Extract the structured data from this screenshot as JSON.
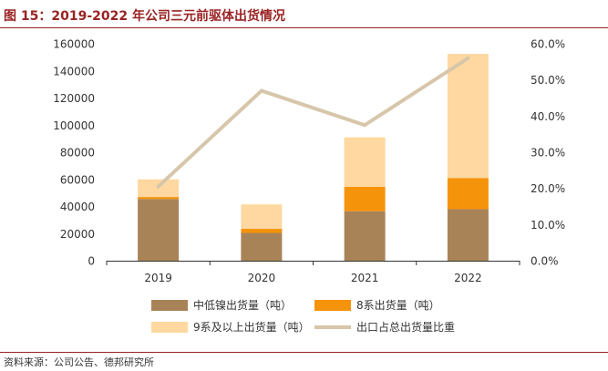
{
  "figure": {
    "title": "图 15：2019-2022 年公司三元前驱体出货情况",
    "source": "资料来源：公司公告、德邦研究所"
  },
  "chart_data": {
    "type": "bar",
    "stacked": true,
    "categories": [
      "2019",
      "2020",
      "2021",
      "2022"
    ],
    "series": [
      {
        "name": "中低镍出货量（吨）",
        "kind": "bar",
        "axis": "left",
        "color": "#a98358",
        "values": [
          45500,
          20500,
          36500,
          38000
        ]
      },
      {
        "name": "8系出货量（吨）",
        "kind": "bar",
        "axis": "left",
        "color": "#f5930b",
        "values": [
          1500,
          3000,
          18000,
          23000
        ]
      },
      {
        "name": "9系及以上出货量（吨）",
        "kind": "bar",
        "axis": "left",
        "color": "#fed8a0",
        "values": [
          13000,
          18000,
          36500,
          91500
        ]
      },
      {
        "name": "出口占总出货量比重",
        "kind": "line",
        "axis": "right",
        "color": "#d7c6aa",
        "values": [
          0.205,
          0.47,
          0.375,
          0.56
        ]
      }
    ],
    "y_left": {
      "min": 0,
      "max": 160000,
      "step": 20000,
      "ticks": [
        "0",
        "20000",
        "40000",
        "60000",
        "80000",
        "100000",
        "120000",
        "140000",
        "160000"
      ]
    },
    "y_right": {
      "min": 0,
      "max": 0.6,
      "step": 0.1,
      "ticks": [
        "0.0%",
        "10.0%",
        "20.0%",
        "30.0%",
        "40.0%",
        "50.0%",
        "60.0%"
      ]
    },
    "grid": false,
    "legend_position": "bottom"
  }
}
